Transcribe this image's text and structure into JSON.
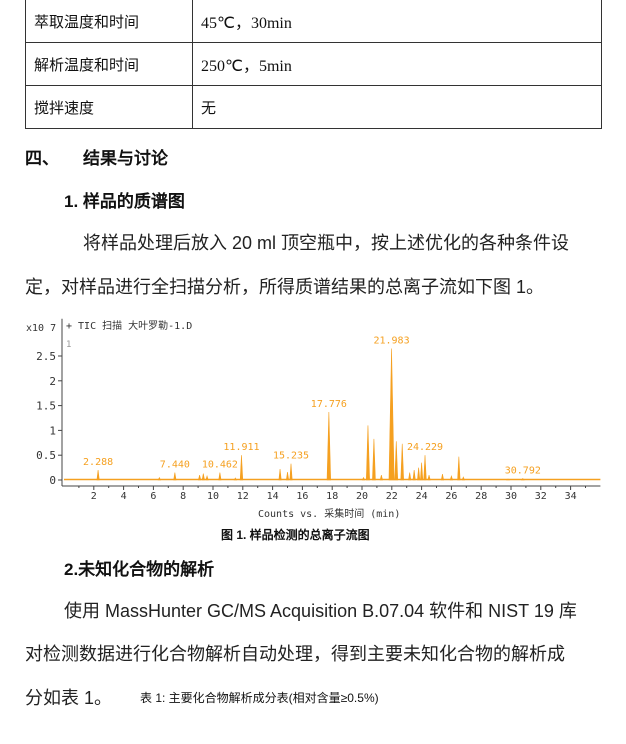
{
  "table": {
    "rows": [
      {
        "key": "萃取温度和时间",
        "value": "45℃，30min"
      },
      {
        "key": "解析温度和时间",
        "value": "250℃，5min"
      },
      {
        "key": "搅拌速度",
        "value": "无"
      }
    ]
  },
  "section4": {
    "number": "四、",
    "title": "结果与讨论"
  },
  "sub1": "1. 样品的质谱图",
  "para1": [
    "将样品处理后放入 20 ml 顶空瓶中，按上述优化的各种条件设",
    "定，对样品进行全扫描分析，所得质谱结果的总离子流如下图 1。"
  ],
  "chart_data": {
    "type": "line",
    "title": "+ TIC 扫描  大叶罗勒-1.D",
    "series_index_label": "1",
    "y_multiplier": "x10 7",
    "xlabel": "Counts vs. 采集时间 (min)",
    "xlim": [
      0,
      36
    ],
    "ylim": [
      0,
      3.2
    ],
    "xticks": [
      2,
      4,
      6,
      8,
      10,
      12,
      14,
      16,
      18,
      20,
      22,
      24,
      26,
      28,
      30,
      32,
      34
    ],
    "yticks": [
      0,
      0.5,
      1,
      1.5,
      2,
      2.5
    ],
    "ytick_labels": [
      "0",
      "0.5",
      "1",
      "1.5",
      "2",
      "2.5"
    ],
    "color": "#f5a020",
    "peaks": [
      [
        2.288,
        0.2
      ],
      [
        6.4,
        0.05
      ],
      [
        7.44,
        0.15
      ],
      [
        9.1,
        0.1
      ],
      [
        9.35,
        0.13
      ],
      [
        9.6,
        0.08
      ],
      [
        10.462,
        0.15
      ],
      [
        11.5,
        0.04
      ],
      [
        11.911,
        0.5
      ],
      [
        14.5,
        0.22
      ],
      [
        15.0,
        0.16
      ],
      [
        15.235,
        0.33
      ],
      [
        17.776,
        1.37
      ],
      [
        20.1,
        0.05
      ],
      [
        20.4,
        1.1
      ],
      [
        20.8,
        0.83
      ],
      [
        21.3,
        0.1
      ],
      [
        21.983,
        2.65
      ],
      [
        22.3,
        0.78
      ],
      [
        22.7,
        0.73
      ],
      [
        23.2,
        0.15
      ],
      [
        23.5,
        0.2
      ],
      [
        23.8,
        0.25
      ],
      [
        24.0,
        0.35
      ],
      [
        24.229,
        0.5
      ],
      [
        24.5,
        0.1
      ],
      [
        25.4,
        0.12
      ],
      [
        26.0,
        0.08
      ],
      [
        26.5,
        0.47
      ],
      [
        26.8,
        0.06
      ],
      [
        29.8,
        0.02
      ],
      [
        30.792,
        0.03
      ]
    ],
    "annotations": [
      [
        "2.288",
        2.288,
        0.2
      ],
      [
        "7.440",
        7.44,
        0.15
      ],
      [
        "10.462",
        10.462,
        0.15
      ],
      [
        "11.911",
        11.911,
        0.5
      ],
      [
        "15.235",
        15.235,
        0.33
      ],
      [
        "17.776",
        17.776,
        1.37
      ],
      [
        "21.983",
        21.983,
        2.65
      ],
      [
        "24.229",
        24.229,
        0.5
      ],
      [
        "30.792",
        30.792,
        0.03
      ]
    ]
  },
  "caption": "图 1.  样品检测的总离子流图",
  "sub2": "2.未知化合物的解析",
  "para2": [
    "使用 MassHunter GC/MS Acquisition B.07.04 软件和 NIST 19 库",
    "对检测数据进行化合物解析自动处理，得到主要未知化合物的解析成",
    "分如表 1。"
  ],
  "table1_caption": "表 1:   主要化合物解析成分表(相对含量≥0.5%)"
}
